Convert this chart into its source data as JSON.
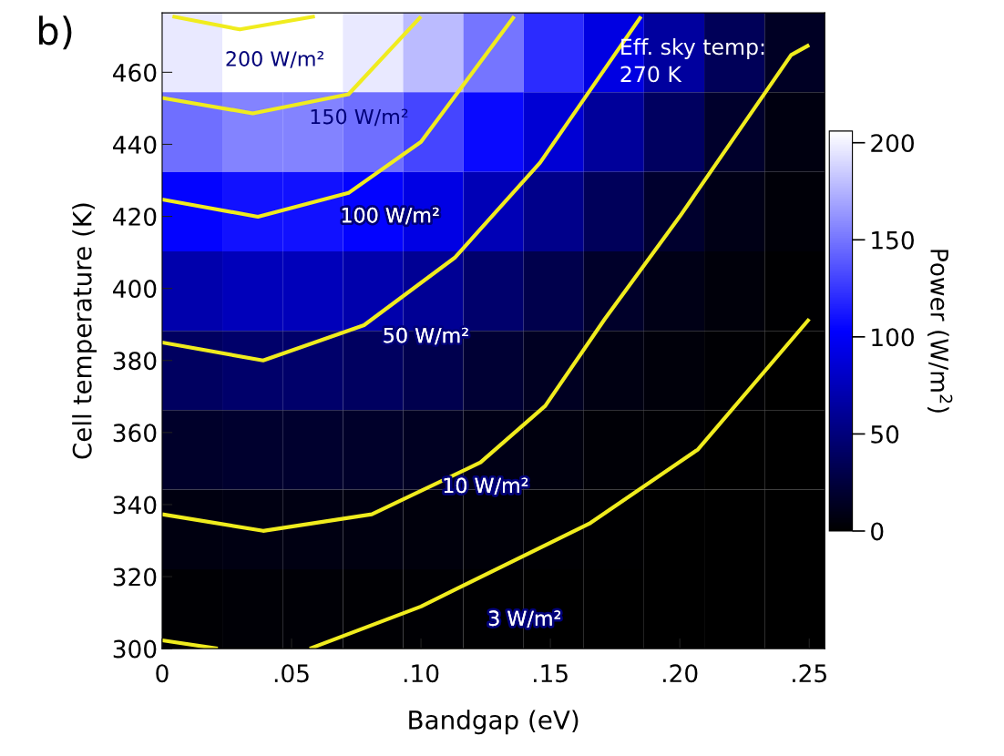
{
  "chart_data": {
    "type": "heatmap",
    "xlabel": "Bandgap (eV)",
    "ylabel": "Cell temperature (K)",
    "clabel": "Power (W/m$^{2}$)",
    "x": [
      0.0116,
      0.0349,
      0.0582,
      0.0815,
      0.1047,
      0.128,
      0.1513,
      0.1745,
      0.1978,
      0.2211,
      0.2444
    ],
    "y": [
      465.5,
      443.4,
      421.3,
      399.3,
      377.2,
      355.2,
      333.1,
      311
    ],
    "cells": [
      [
        197,
        207,
        207,
        197,
        178,
        150,
        120,
        91,
        64,
        36,
        15
      ],
      [
        148,
        156,
        156,
        148,
        131,
        107,
        86,
        62,
        39,
        18,
        7
      ],
      [
        104,
        110,
        110,
        104,
        92,
        74,
        56,
        37,
        19,
        9,
        3.4
      ],
      [
        70,
        75,
        75,
        70,
        60,
        44,
        31,
        17.5,
        9.5,
        4.4,
        1.6
      ],
      [
        39,
        43,
        43,
        39,
        32,
        21,
        14.4,
        7.5,
        4.3,
        1.8,
        0.6
      ],
      [
        17.4,
        19,
        19,
        17.4,
        14.2,
        9.3,
        6,
        3.2,
        1.7,
        0.7,
        0.2
      ],
      [
        6.9,
        7.5,
        7.5,
        6.9,
        5.6,
        3.6,
        2.1,
        1.3,
        0.6,
        0.2,
        0.1
      ],
      [
        2.3,
        2.5,
        2.5,
        2.3,
        1.9,
        1.3,
        0.7,
        0.4,
        0.2,
        0.1,
        0
      ]
    ],
    "clim": [
      0,
      206
    ],
    "cticks": [
      0,
      50,
      100,
      150,
      200
    ],
    "xlim": [
      0,
      0.256
    ],
    "ylim": [
      300,
      476.5
    ],
    "xticks": [
      0,
      {
        "value": 0.05,
        "label": ".05"
      },
      {
        "value": 0.1,
        "label": ".10"
      },
      {
        "value": 0.15,
        "label": ".15"
      },
      {
        "value": 0.2,
        "label": ".20"
      },
      {
        "value": 0.25,
        "label": ".25"
      }
    ],
    "yticks": [
      300,
      320,
      340,
      360,
      380,
      400,
      420,
      440,
      460
    ],
    "series": [
      {
        "type": "line",
        "name": "200 W/m²",
        "color": "#f0ec1e",
        "x": [
          0.004,
          0.03,
          0.059
        ],
        "values": [
          475.5,
          471.9,
          475.5
        ]
      },
      {
        "type": "line",
        "name": "150 W/m²",
        "color": "#f0ec1e",
        "x": [
          0,
          0.035,
          0.072,
          0.1
        ],
        "values": [
          452.9,
          448.6,
          453.9,
          475.5
        ]
      },
      {
        "type": "line",
        "name": "100 W/m²",
        "color": "#f0ec1e",
        "x": [
          0,
          0.037,
          0.072,
          0.1,
          0.136
        ],
        "values": [
          424.7,
          419.9,
          426.5,
          440.7,
          475.5
        ]
      },
      {
        "type": "line",
        "name": "50 W/m²",
        "color": "#f0ec1e",
        "x": [
          0,
          0.039,
          0.078,
          0.113,
          0.146,
          0.185
        ],
        "values": [
          385,
          380,
          389.8,
          408.5,
          434.9,
          475.5
        ]
      },
      {
        "type": "line",
        "name": "10 W/m²",
        "color": "#f0ec1e",
        "x": [
          0,
          0.039,
          0.081,
          0.123,
          0.148,
          0.171,
          0.2,
          0.243,
          0.25
        ],
        "values": [
          337.3,
          332.7,
          337.3,
          351.7,
          367.4,
          391.5,
          420,
          464.8,
          467.6
        ]
      },
      {
        "type": "line",
        "name": "3 W/m²",
        "color": "#f0ec1e",
        "x": [
          0,
          0.0215,
          0.04,
          0.057,
          0.1,
          0.114,
          0.165,
          0.207,
          0.25
        ],
        "values": [
          302.3,
          300,
          null,
          300,
          311.7,
          316.7,
          334.7,
          355.3,
          391.5
        ]
      }
    ],
    "annotations": [
      "Eff. sky temp:\n270 K",
      "b)"
    ]
  }
}
